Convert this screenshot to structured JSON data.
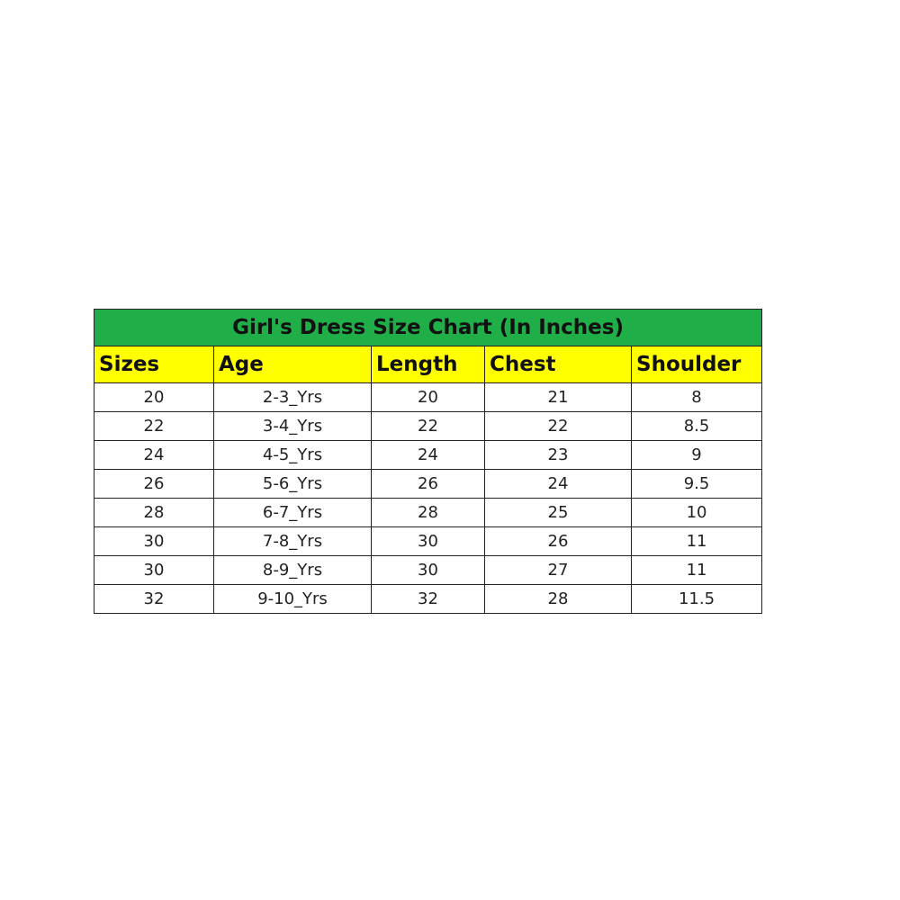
{
  "title": "Girl's Dress Size Chart (In Inches)",
  "columns": [
    "Sizes",
    "Age",
    "Length",
    "Chest",
    "Shoulder"
  ],
  "rows": [
    [
      "20",
      "2-3_Yrs",
      "20",
      "21",
      "8"
    ],
    [
      "22",
      "3-4_Yrs",
      "22",
      "22",
      "8.5"
    ],
    [
      "24",
      "4-5_Yrs",
      "24",
      "23",
      "9"
    ],
    [
      "26",
      "5-6_Yrs",
      "26",
      "24",
      "9.5"
    ],
    [
      "28",
      "6-7_Yrs",
      "28",
      "25",
      "10"
    ],
    [
      "30",
      "7-8_Yrs",
      "30",
      "26",
      "11"
    ],
    [
      "30",
      "8-9_Yrs",
      "30",
      "27",
      "11"
    ],
    [
      "32",
      "9-10_Yrs",
      "32",
      "28",
      "11.5"
    ]
  ],
  "colors": {
    "title_bg": "#1fae48",
    "header_bg": "#ffff00"
  }
}
